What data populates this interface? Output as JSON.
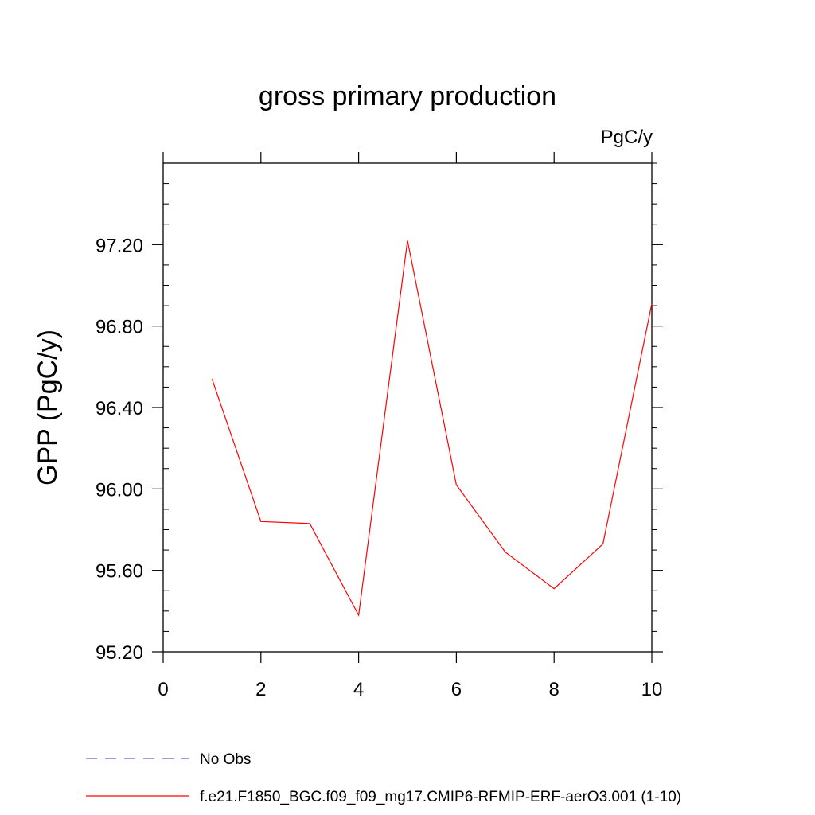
{
  "chart_data": {
    "type": "line",
    "title": "gross primary production",
    "units": "PgC/y",
    "xlabel": "",
    "ylabel": "GPP  (PgC/y)",
    "xlim": [
      0,
      10
    ],
    "ylim": [
      95.2,
      97.6
    ],
    "x_ticks": [
      0,
      2,
      4,
      6,
      8,
      10
    ],
    "x_tick_labels": [
      "0",
      "2",
      "4",
      "6",
      "8",
      "10"
    ],
    "y_ticks": [
      95.2,
      95.6,
      96.0,
      96.4,
      96.8,
      97.2
    ],
    "y_tick_labels": [
      "95.20",
      "95.60",
      "96.00",
      "96.40",
      "96.80",
      "97.20"
    ],
    "grid": false,
    "legend_position": "bottom",
    "series": [
      {
        "name": "No Obs",
        "color": "#6a5acd",
        "style": "dashed",
        "x": [],
        "y": []
      },
      {
        "name": "f.e21.F1850_BGC.f09_f09_mg17.CMIP6-RFMIP-ERF-aerO3.001 (1-10)",
        "color": "#ff0000",
        "style": "solid",
        "x": [
          1,
          2,
          3,
          4,
          5,
          6,
          7,
          8,
          9,
          10
        ],
        "y": [
          96.54,
          95.84,
          95.83,
          95.38,
          97.22,
          96.02,
          95.69,
          95.51,
          95.73,
          96.91
        ]
      }
    ]
  }
}
